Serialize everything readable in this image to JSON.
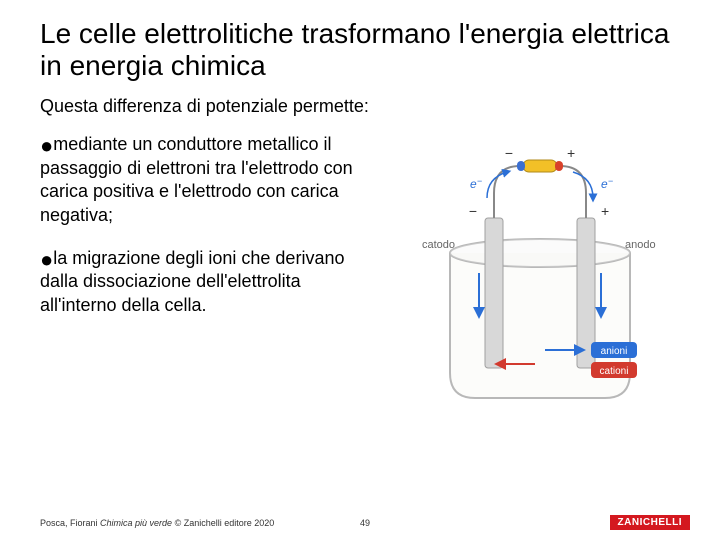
{
  "title": "Le celle elettrolitiche trasformano l'energia elettrica in energia chimica",
  "subtitle": "Questa differenza di potenziale permette:",
  "bullets": [
    "mediante un conduttore metallico il passaggio di elettroni tra l'elettrodo con carica positiva e l'elettrodo con carica negativa;",
    "la migrazione degli ioni che derivano dalla dissociazione dell'elettrolita all'interno della cella."
  ],
  "footer": {
    "left_authors": "Posca, Fiorani ",
    "left_title": "Chimica più verde",
    "left_copy": " © Zanichelli editore 2020",
    "page": "49",
    "logo": "ZANICHELLI"
  },
  "diagram": {
    "type": "infographic",
    "background_color": "#ffffff",
    "beaker_stroke": "#b8b8b8",
    "beaker_fill": "#f2f2f2",
    "liquid_fill": "#fcfcfa",
    "electrode_fill": "#d8d8d8",
    "electrode_stroke": "#a0a0a0",
    "wire_color": "#888888",
    "battery_body": "#f2c027",
    "battery_cap_neg": "#3b6fd1",
    "battery_cap_pos": "#d8412a",
    "electron_color": "#2b6fd6",
    "electron_arrow": "#2b6fd6",
    "arrow_red": "#d23a2e",
    "arrow_blue": "#2b6fd6",
    "label_color": "#666666",
    "label_fontsize": 11,
    "sign_fontsize": 14,
    "labels": {
      "cathode": "catodo",
      "anode": "anodo",
      "anions": "anioni",
      "cations": "cationi",
      "electron": "e",
      "minus": "−",
      "plus": "+"
    }
  }
}
